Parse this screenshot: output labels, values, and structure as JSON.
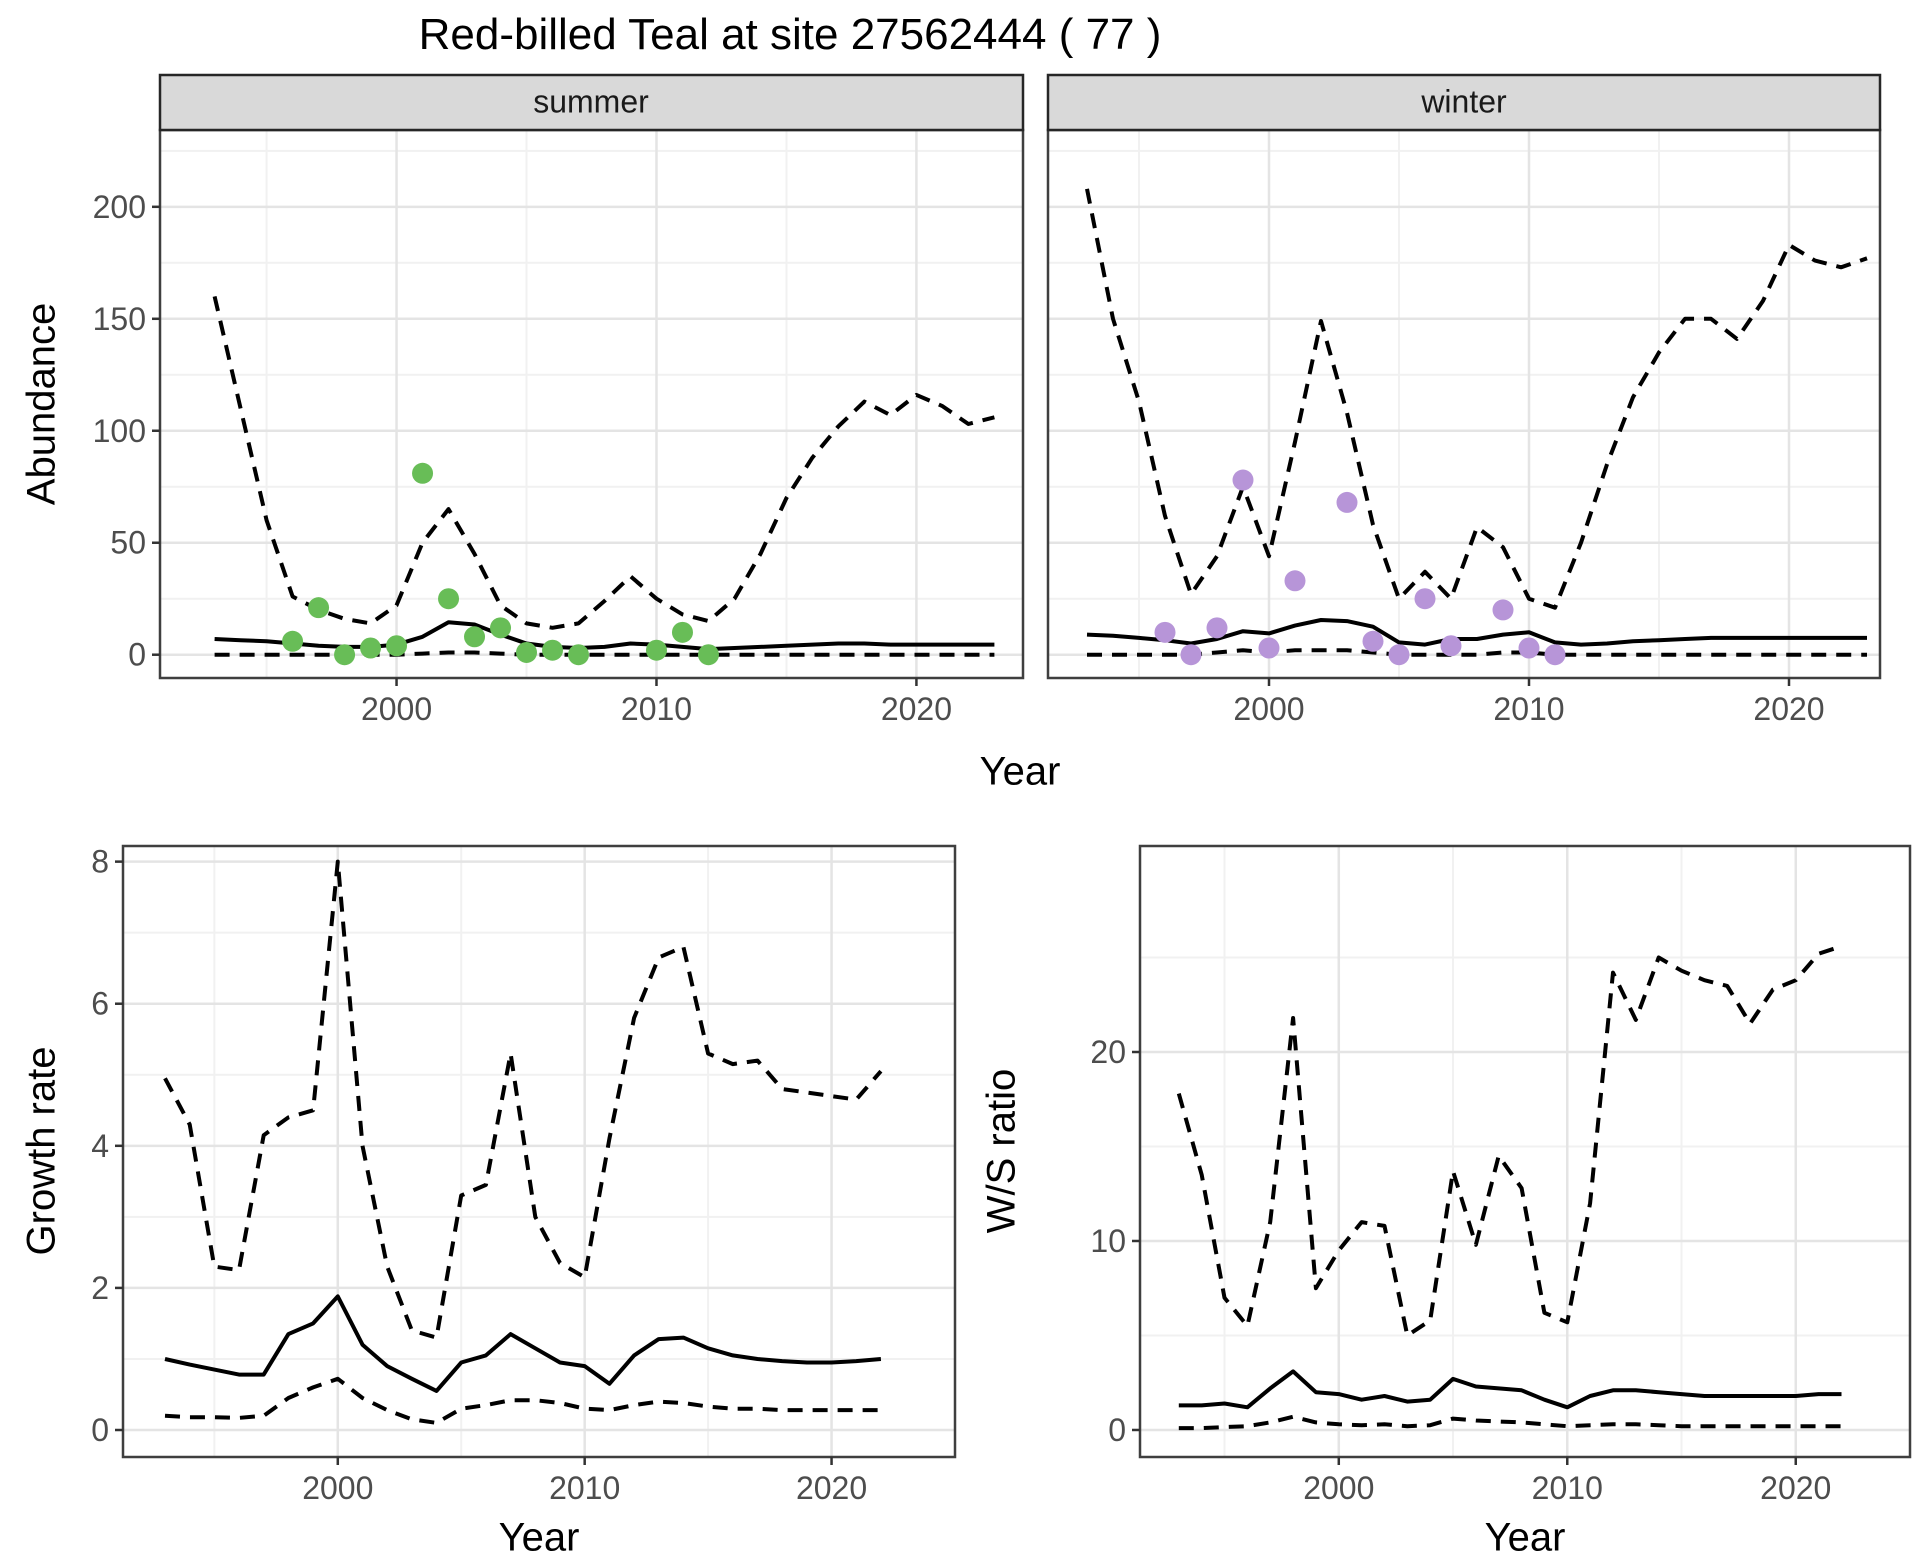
{
  "title": "Red-billed Teal at site 27562444 ( 77 )",
  "colors": {
    "line": "#000000",
    "grid_major": "#E4E4E4",
    "grid_minor": "#F1F1F1",
    "panel_border": "#3F3F3F",
    "strip_fill": "#D9D9D9",
    "strip_border": "#262626",
    "tick": "#333333",
    "tick_label": "#4D4D4D",
    "points_summer": "#68BD57",
    "points_winter": "#B795D8"
  },
  "chart_data": [
    {
      "id": "abundance-summer",
      "type": "line",
      "facet": "summer",
      "ylabel": "Abundance",
      "xlabel": "Year",
      "xlim": [
        1990.9,
        2024.1
      ],
      "ylim": [
        -10.4,
        234.3
      ],
      "xticks": [
        2000,
        2010,
        2020
      ],
      "xminor": [
        1995,
        2005,
        2015
      ],
      "yticks": [
        0,
        50,
        100,
        150,
        200
      ],
      "yminor": [
        25,
        75,
        125,
        175,
        225
      ],
      "show_ytick_labels": true,
      "x": [
        1993,
        1994,
        1995,
        1996,
        1997,
        1998,
        1999,
        2000,
        2001,
        2002,
        2003,
        2004,
        2005,
        2006,
        2007,
        2008,
        2009,
        2010,
        2011,
        2012,
        2013,
        2014,
        2015,
        2016,
        2017,
        2018,
        2019,
        2020,
        2021,
        2022,
        2023
      ],
      "series": [
        {
          "name": "upper-95ci",
          "style": "dashed",
          "values": [
            160,
            110,
            60,
            26,
            20,
            16,
            14,
            22,
            50,
            65,
            45,
            22,
            14,
            12,
            14,
            24,
            35,
            25,
            18,
            15,
            25,
            45,
            70,
            88,
            102,
            113,
            107,
            116,
            111,
            103,
            106
          ]
        },
        {
          "name": "median",
          "style": "solid",
          "values": [
            7,
            6.5,
            6,
            5,
            4,
            3.5,
            3.5,
            4.5,
            8,
            14.5,
            13.5,
            9,
            5,
            3.5,
            3,
            3.5,
            5,
            4.5,
            3.5,
            2.5,
            3,
            3.5,
            4,
            4.5,
            5,
            5,
            4.5,
            4.5,
            4.5,
            4.5,
            4.5
          ]
        },
        {
          "name": "lower-95ci",
          "style": "dashed",
          "values": [
            0,
            0,
            0,
            0,
            0,
            0,
            0,
            0,
            0.5,
            1,
            1,
            0.5,
            0,
            0,
            0,
            0,
            0,
            0,
            0,
            0,
            0,
            0,
            0,
            0,
            0,
            0,
            0,
            0,
            0,
            0,
            0
          ]
        }
      ],
      "points": {
        "name": "observed-counts",
        "color": "#68BD57",
        "data": [
          [
            1996,
            6
          ],
          [
            1997,
            21
          ],
          [
            1998,
            0
          ],
          [
            1999,
            3
          ],
          [
            2000,
            4
          ],
          [
            2001,
            81
          ],
          [
            2002,
            25
          ],
          [
            2003,
            8
          ],
          [
            2004,
            12
          ],
          [
            2005,
            1
          ],
          [
            2006,
            2
          ],
          [
            2007,
            0
          ],
          [
            2010,
            2
          ],
          [
            2011,
            10
          ],
          [
            2012,
            0
          ]
        ]
      }
    },
    {
      "id": "abundance-winter",
      "type": "line",
      "facet": "winter",
      "ylabel": "",
      "xlabel": "Year",
      "xlim": [
        1991.5,
        2023.5
      ],
      "ylim": [
        -10.4,
        234.3
      ],
      "xticks": [
        2000,
        2010,
        2020
      ],
      "xminor": [
        1995,
        2005,
        2015
      ],
      "yticks": [
        0,
        50,
        100,
        150,
        200
      ],
      "yminor": [
        25,
        75,
        125,
        175,
        225
      ],
      "show_ytick_labels": false,
      "x": [
        1993,
        1994,
        1995,
        1996,
        1997,
        1998,
        1999,
        2000,
        2001,
        2002,
        2003,
        2004,
        2005,
        2006,
        2007,
        2008,
        2009,
        2010,
        2011,
        2012,
        2013,
        2014,
        2015,
        2016,
        2017,
        2018,
        2019,
        2020,
        2021,
        2022,
        2023
      ],
      "series": [
        {
          "name": "upper-95ci",
          "style": "dashed",
          "values": [
            208,
            150,
            113,
            62,
            27,
            44,
            75,
            44,
            95,
            149,
            108,
            58,
            25,
            37,
            25,
            57,
            48,
            25,
            21,
            50,
            85,
            115,
            135,
            150,
            150,
            141,
            158,
            183,
            176,
            173,
            177
          ]
        },
        {
          "name": "median",
          "style": "solid",
          "values": [
            9,
            8.5,
            7.5,
            6.5,
            5,
            7,
            10.5,
            9.5,
            13,
            15.5,
            15,
            12.5,
            5.5,
            4.5,
            7,
            7,
            9,
            10,
            5.5,
            4.5,
            5,
            6,
            6.5,
            7,
            7.5,
            7.5,
            7.5,
            7.5,
            7.5,
            7.5,
            7.5
          ]
        },
        {
          "name": "lower-95ci",
          "style": "dashed",
          "values": [
            0,
            0,
            0,
            0,
            0,
            1,
            2,
            1,
            2,
            2,
            2,
            1,
            0,
            0,
            0,
            0,
            1,
            1,
            0,
            0,
            0,
            0,
            0,
            0,
            0,
            0,
            0,
            0,
            0,
            0,
            0
          ]
        }
      ],
      "points": {
        "name": "observed-counts",
        "color": "#B795D8",
        "data": [
          [
            1996,
            10
          ],
          [
            1997,
            0
          ],
          [
            1998,
            12
          ],
          [
            1999,
            78
          ],
          [
            2000,
            3
          ],
          [
            2001,
            33
          ],
          [
            2003,
            68
          ],
          [
            2004,
            6
          ],
          [
            2005,
            0
          ],
          [
            2006,
            25
          ],
          [
            2007,
            4
          ],
          [
            2009,
            20
          ],
          [
            2010,
            3
          ],
          [
            2011,
            0
          ]
        ]
      }
    },
    {
      "id": "growth-rate",
      "type": "line",
      "facet": null,
      "ylabel": "Growth rate",
      "xlabel": "Year",
      "xlim": [
        1991.3,
        2025.0
      ],
      "ylim": [
        -0.38,
        8.22
      ],
      "xticks": [
        2000,
        2010,
        2020
      ],
      "xminor": [
        1995,
        2005,
        2015
      ],
      "yticks": [
        0,
        2,
        4,
        6,
        8
      ],
      "yminor": [
        1,
        3,
        5,
        7
      ],
      "show_ytick_labels": true,
      "x": [
        1993,
        1994,
        1995,
        1996,
        1997,
        1998,
        1999,
        2000,
        2001,
        2002,
        2003,
        2004,
        2005,
        2006,
        2007,
        2008,
        2009,
        2010,
        2011,
        2012,
        2013,
        2014,
        2015,
        2016,
        2017,
        2018,
        2019,
        2020,
        2021,
        2022
      ],
      "series": [
        {
          "name": "upper-95ci",
          "style": "dashed",
          "values": [
            4.95,
            4.3,
            2.3,
            2.25,
            4.15,
            4.4,
            4.5,
            8.0,
            4.0,
            2.3,
            1.4,
            1.3,
            3.3,
            3.45,
            5.3,
            3.0,
            2.35,
            2.15,
            4.1,
            5.8,
            6.65,
            6.8,
            5.3,
            5.15,
            5.2,
            4.8,
            4.75,
            4.7,
            4.65,
            5.05
          ]
        },
        {
          "name": "median",
          "style": "solid",
          "values": [
            1.0,
            0.92,
            0.85,
            0.78,
            0.78,
            1.35,
            1.5,
            1.88,
            1.2,
            0.9,
            0.72,
            0.55,
            0.95,
            1.05,
            1.35,
            1.15,
            0.95,
            0.9,
            0.65,
            1.05,
            1.28,
            1.3,
            1.15,
            1.05,
            1.0,
            0.97,
            0.95,
            0.95,
            0.97,
            1.0
          ]
        },
        {
          "name": "lower-95ci",
          "style": "dashed",
          "values": [
            0.2,
            0.18,
            0.18,
            0.17,
            0.2,
            0.45,
            0.6,
            0.72,
            0.45,
            0.28,
            0.15,
            0.1,
            0.3,
            0.35,
            0.42,
            0.42,
            0.38,
            0.3,
            0.28,
            0.35,
            0.4,
            0.38,
            0.33,
            0.3,
            0.3,
            0.28,
            0.28,
            0.28,
            0.28,
            0.28
          ]
        }
      ],
      "points": null
    },
    {
      "id": "ws-ratio",
      "type": "line",
      "facet": null,
      "ylabel": "W/S ratio",
      "xlabel": "Year",
      "xlim": [
        1991.3,
        2025.0
      ],
      "ylim": [
        -1.43,
        30.9
      ],
      "xticks": [
        2000,
        2010,
        2020
      ],
      "xminor": [
        1995,
        2005,
        2015
      ],
      "yticks": [
        0,
        10,
        20
      ],
      "yminor": [
        5,
        15,
        25
      ],
      "show_ytick_labels": true,
      "x": [
        1993,
        1994,
        1995,
        1996,
        1997,
        1998,
        1999,
        2000,
        2001,
        2002,
        2003,
        2004,
        2005,
        2006,
        2007,
        2008,
        2009,
        2010,
        2011,
        2012,
        2013,
        2014,
        2015,
        2016,
        2017,
        2018,
        2019,
        2020,
        2021,
        2022
      ],
      "series": [
        {
          "name": "upper-95ci",
          "style": "dashed",
          "values": [
            17.8,
            13.5,
            7,
            5.5,
            11,
            21.8,
            7.5,
            9.5,
            11,
            10.8,
            5,
            5.8,
            13.7,
            9.8,
            14.5,
            12.8,
            6.2,
            5.7,
            12,
            24.2,
            21.7,
            25,
            24.3,
            23.8,
            23.5,
            21.5,
            23.3,
            23.8,
            25.2,
            25.6
          ]
        },
        {
          "name": "median",
          "style": "solid",
          "values": [
            1.3,
            1.3,
            1.4,
            1.2,
            2.2,
            3.1,
            2.0,
            1.9,
            1.6,
            1.8,
            1.5,
            1.6,
            2.7,
            2.3,
            2.2,
            2.1,
            1.6,
            1.2,
            1.8,
            2.1,
            2.1,
            2.0,
            1.9,
            1.8,
            1.8,
            1.8,
            1.8,
            1.8,
            1.9,
            1.9
          ]
        },
        {
          "name": "lower-95ci",
          "style": "dashed",
          "values": [
            0.1,
            0.1,
            0.15,
            0.2,
            0.4,
            0.7,
            0.4,
            0.3,
            0.25,
            0.3,
            0.2,
            0.25,
            0.6,
            0.5,
            0.45,
            0.4,
            0.3,
            0.2,
            0.25,
            0.3,
            0.3,
            0.25,
            0.2,
            0.2,
            0.2,
            0.2,
            0.2,
            0.2,
            0.2,
            0.2
          ]
        }
      ],
      "points": null
    }
  ]
}
